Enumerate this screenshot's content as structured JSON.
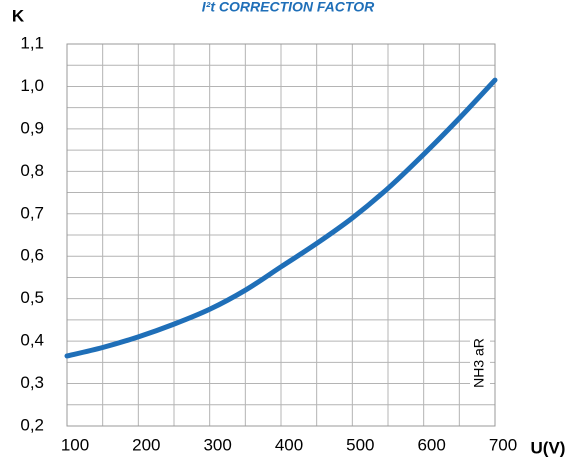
{
  "chart_data": {
    "type": "line",
    "title": "I²t CORRECTION FACTOR",
    "y_label": "K",
    "x_label": "U(V)",
    "annotation": "NH3 aR",
    "x": [
      100,
      150,
      200,
      250,
      300,
      350,
      400,
      450,
      500,
      550,
      600,
      650,
      700
    ],
    "series": [
      {
        "name": "NH3 aR",
        "color": "#1f6fb8",
        "values": [
          0.365,
          0.385,
          0.41,
          0.44,
          0.475,
          0.52,
          0.575,
          0.63,
          0.69,
          0.76,
          0.84,
          0.925,
          1.015
        ]
      }
    ],
    "xlim": [
      100,
      700
    ],
    "xticks": [
      100,
      200,
      300,
      400,
      500,
      600,
      700
    ],
    "ylim": [
      0.2,
      1.1
    ],
    "yticks": [
      {
        "value": 0.2,
        "label": "0,2"
      },
      {
        "value": 0.3,
        "label": "0,3"
      },
      {
        "value": 0.4,
        "label": "0,4"
      },
      {
        "value": 0.5,
        "label": "0,5"
      },
      {
        "value": 0.6,
        "label": "0,6"
      },
      {
        "value": 0.7,
        "label": "0,7"
      },
      {
        "value": 0.8,
        "label": "0,8"
      },
      {
        "value": 0.9,
        "label": "0,9"
      },
      {
        "value": 1.0,
        "label": "1,0"
      },
      {
        "value": 1.1,
        "label": "1,1"
      }
    ],
    "grid": true,
    "minor_grid": true
  }
}
